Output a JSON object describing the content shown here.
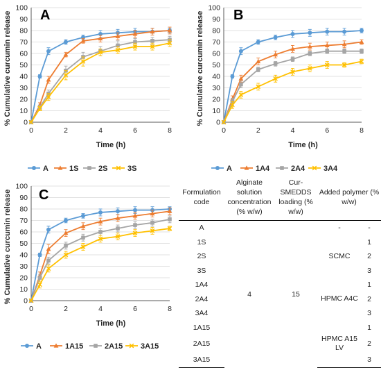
{
  "chart_data": [
    {
      "type": "line",
      "panel_label": "A",
      "ylabel": "% Cumulative curcumin release",
      "xlabel": "Time (h)",
      "xlim": [
        0,
        8
      ],
      "ylim": [
        0,
        100
      ],
      "xticks": [
        0,
        2,
        4,
        6,
        8
      ],
      "yticks": [
        0,
        10,
        20,
        30,
        40,
        50,
        60,
        70,
        80,
        90,
        100
      ],
      "grid": true,
      "legend_position": "bottom",
      "x": [
        0,
        0.5,
        1,
        2,
        3,
        4,
        5,
        6,
        7,
        8
      ],
      "series": [
        {
          "name": "A",
          "color": "#5b9bd5",
          "marker": "circle",
          "values": [
            0,
            40,
            62,
            70,
            74,
            77,
            78,
            79,
            79,
            80
          ],
          "err": [
            0,
            1.5,
            3,
            2,
            2,
            3,
            3,
            3,
            3,
            2
          ]
        },
        {
          "name": "1S",
          "color": "#ed7d31",
          "marker": "triangle",
          "values": [
            0,
            15,
            37,
            59,
            71,
            73,
            75,
            77,
            79,
            80
          ],
          "err": [
            0,
            2,
            3,
            2,
            2,
            3,
            3,
            3,
            3,
            3
          ]
        },
        {
          "name": "2S",
          "color": "#a5a5a5",
          "marker": "square",
          "values": [
            0,
            13,
            25,
            45,
            57,
            62,
            67,
            70,
            71,
            72
          ],
          "err": [
            0,
            2,
            3,
            4,
            4,
            4,
            4,
            3,
            3,
            3
          ]
        },
        {
          "name": "3S",
          "color": "#ffc000",
          "marker": "x",
          "values": [
            0,
            12,
            22,
            41,
            53,
            61,
            63,
            66,
            66,
            69
          ],
          "err": [
            0,
            2,
            3,
            4,
            4,
            3,
            3,
            3,
            3,
            3
          ]
        }
      ]
    },
    {
      "type": "line",
      "panel_label": "B",
      "ylabel": "% Cumulative curcumin release",
      "xlabel": "Time (h)",
      "xlim": [
        0,
        8
      ],
      "ylim": [
        0,
        100
      ],
      "xticks": [
        0,
        2,
        4,
        6,
        8
      ],
      "yticks": [
        0,
        10,
        20,
        30,
        40,
        50,
        60,
        70,
        80,
        90,
        100
      ],
      "grid": true,
      "legend_position": "bottom",
      "x": [
        0,
        0.5,
        1,
        2,
        3,
        4,
        5,
        6,
        7,
        8
      ],
      "series": [
        {
          "name": "A",
          "color": "#5b9bd5",
          "marker": "circle",
          "values": [
            0,
            40,
            62,
            70,
            74,
            77,
            78,
            79,
            79,
            80
          ],
          "err": [
            0,
            1.5,
            3,
            2,
            2,
            3,
            3,
            3,
            3,
            2
          ]
        },
        {
          "name": "1A4",
          "color": "#ed7d31",
          "marker": "triangle",
          "values": [
            0,
            20,
            38,
            53,
            59,
            64,
            66,
            67,
            68,
            70
          ],
          "err": [
            0,
            3,
            3,
            3,
            3,
            3,
            3,
            3,
            3,
            2
          ]
        },
        {
          "name": "2A4",
          "color": "#a5a5a5",
          "marker": "square",
          "values": [
            0,
            18,
            33,
            46,
            51,
            55,
            60,
            62,
            62,
            62
          ],
          "err": [
            0,
            3,
            3,
            2,
            2,
            2,
            2,
            2,
            2,
            2
          ]
        },
        {
          "name": "3A4",
          "color": "#ffc000",
          "marker": "x",
          "values": [
            0,
            15,
            24,
            31,
            38,
            44,
            47,
            50,
            50,
            53
          ],
          "err": [
            0,
            3,
            3,
            3,
            3,
            3,
            3,
            3,
            2,
            2
          ]
        }
      ]
    },
    {
      "type": "line",
      "panel_label": "C",
      "ylabel": "% Cumulative curcumin release",
      "xlabel": "Time (h)",
      "xlim": [
        0,
        8
      ],
      "ylim": [
        0,
        100
      ],
      "xticks": [
        0,
        2,
        4,
        6,
        8
      ],
      "yticks": [
        0,
        10,
        20,
        30,
        40,
        50,
        60,
        70,
        80,
        90,
        100
      ],
      "grid": true,
      "legend_position": "bottom",
      "x": [
        0,
        0.5,
        1,
        2,
        3,
        4,
        5,
        6,
        7,
        8
      ],
      "series": [
        {
          "name": "A",
          "color": "#5b9bd5",
          "marker": "circle",
          "values": [
            0,
            40,
            62,
            70,
            74,
            77,
            78,
            79,
            79,
            80
          ],
          "err": [
            0,
            1.5,
            3,
            2,
            2,
            3,
            3,
            3,
            3,
            2
          ]
        },
        {
          "name": "1A15",
          "color": "#ed7d31",
          "marker": "triangle",
          "values": [
            0,
            22,
            45,
            59,
            65,
            69,
            72,
            74,
            76,
            78
          ],
          "err": [
            0,
            3,
            4,
            3,
            3,
            3,
            3,
            3,
            3,
            3
          ]
        },
        {
          "name": "2A15",
          "color": "#a5a5a5",
          "marker": "square",
          "values": [
            0,
            20,
            35,
            48,
            55,
            60,
            63,
            66,
            68,
            71
          ],
          "err": [
            0,
            3,
            3,
            3,
            3,
            3,
            3,
            3,
            3,
            3
          ]
        },
        {
          "name": "3A15",
          "color": "#ffc000",
          "marker": "x",
          "values": [
            0,
            14,
            28,
            40,
            47,
            54,
            56,
            59,
            61,
            63
          ],
          "err": [
            0,
            3,
            3,
            3,
            3,
            3,
            3,
            3,
            3,
            2
          ]
        }
      ]
    }
  ],
  "table": {
    "headers": [
      "Formulation code",
      "Alginate solution concentration (% w/w)",
      "Cur-SMEDDS loading (% w/w)",
      "Added polymer (% w/w)"
    ],
    "codes": [
      "A",
      "1S",
      "2S",
      "3S",
      "1A4",
      "2A4",
      "3A4",
      "1A15",
      "2A15",
      "3A15"
    ],
    "alginate": "4",
    "loading": "15",
    "polymer_a": "-",
    "polymer_a_amount": "-",
    "polymer_groups": [
      "SCMC",
      "HPMC A4C",
      "HPMC A15 LV"
    ],
    "amounts": [
      "1",
      "2",
      "3",
      "1",
      "2",
      "3",
      "1",
      "2",
      "3"
    ]
  }
}
